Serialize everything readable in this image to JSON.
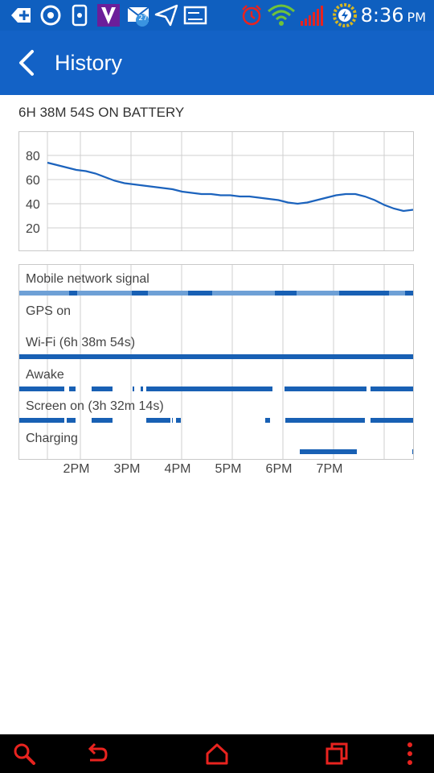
{
  "status_bar": {
    "time": "8:36",
    "ampm": "PM",
    "icons": [
      "add-icon",
      "sync-icon",
      "phone-app-icon",
      "v-app-icon",
      "email-icon",
      "send-icon",
      "gallery-icon",
      "alarm-icon",
      "wifi-icon",
      "signal-icon",
      "battery-charging-icon"
    ],
    "mail_badge": "27"
  },
  "app_bar": {
    "title": "History",
    "back_icon": "back-arrow-icon"
  },
  "summary": "6H 38M 54S ON BATTERY",
  "battery_chart": {
    "type": "line",
    "y_ticks": [
      "80",
      "60",
      "40",
      "20"
    ],
    "ylim": [
      0,
      100
    ],
    "grid": true,
    "line_color": "#1c63bd",
    "values": [
      74,
      72,
      70,
      68,
      67,
      65,
      62,
      59,
      57,
      56,
      55,
      54,
      53,
      52,
      50,
      49,
      48,
      48,
      47,
      47,
      46,
      46,
      45,
      44,
      43,
      41,
      40,
      41,
      43,
      45,
      47,
      48,
      48,
      46,
      43,
      39,
      36,
      34,
      35
    ]
  },
  "usage_rows": [
    {
      "label": "Mobile network signal"
    },
    {
      "label": "GPS on"
    },
    {
      "label": "Wi-Fi (6h 38m 54s)"
    },
    {
      "label": "Awake"
    },
    {
      "label": "Screen on (3h 32m 14s)"
    },
    {
      "label": "Charging"
    }
  ],
  "time_axis": [
    "2PM",
    "3PM",
    "4PM",
    "5PM",
    "6PM",
    "7PM"
  ],
  "colors": {
    "status_bar": "#0f5fbf",
    "app_bar": "#1362c6",
    "bar_dark": "#1860b4",
    "bar_light": "#6ea0d6",
    "nav_icons": "#e8231f"
  },
  "nav_bar": {
    "buttons": [
      "search-icon",
      "back-icon",
      "home-icon",
      "recent-apps-icon",
      "menu-icon"
    ]
  }
}
